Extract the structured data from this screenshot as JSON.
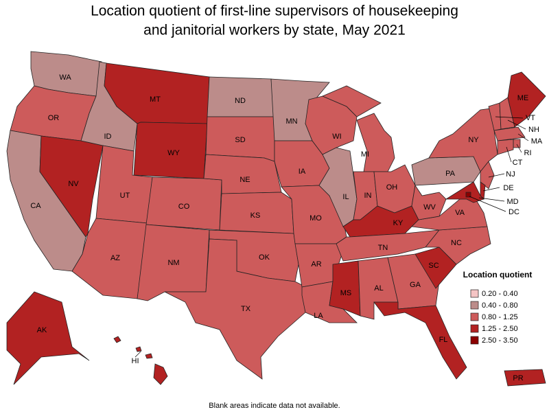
{
  "title": [
    "Location quotient of first-line supervisors of housekeeping",
    "and janitorial workers by state, May 2021"
  ],
  "legend": {
    "title": "Location quotient",
    "items": [
      {
        "label": "0.20 - 0.40",
        "color": "#f5c4c4",
        "states": []
      },
      {
        "label": "0.40 - 0.80",
        "color": "#bc8c8a",
        "states": [
          "WA",
          "CA",
          "ID",
          "ND",
          "MN",
          "IL",
          "PA"
        ]
      },
      {
        "label": "0.80 - 1.25",
        "color": "#cd5b5b",
        "states": [
          "OR",
          "UT",
          "AZ",
          "CO",
          "NM",
          "SD",
          "NE",
          "KS",
          "OK",
          "TX",
          "IA",
          "MO",
          "AR",
          "LA",
          "WI",
          "MI",
          "IN",
          "OH",
          "TN",
          "AL",
          "GA",
          "NC",
          "VA",
          "WV",
          "NY",
          "VT",
          "NH",
          "MA",
          "RI",
          "CT",
          "NJ"
        ]
      },
      {
        "label": "1.25 - 2.50",
        "color": "#b22222",
        "states": [
          "NV",
          "MT",
          "WY",
          "KY",
          "MS",
          "FL",
          "SC",
          "ME",
          "DE",
          "MD",
          "AK",
          "HI",
          "PR"
        ]
      },
      {
        "label": "2.50 - 3.50",
        "color": "#8b0000",
        "states": [
          "DC"
        ]
      }
    ]
  },
  "footnote": "Blank areas indicate data not available."
}
